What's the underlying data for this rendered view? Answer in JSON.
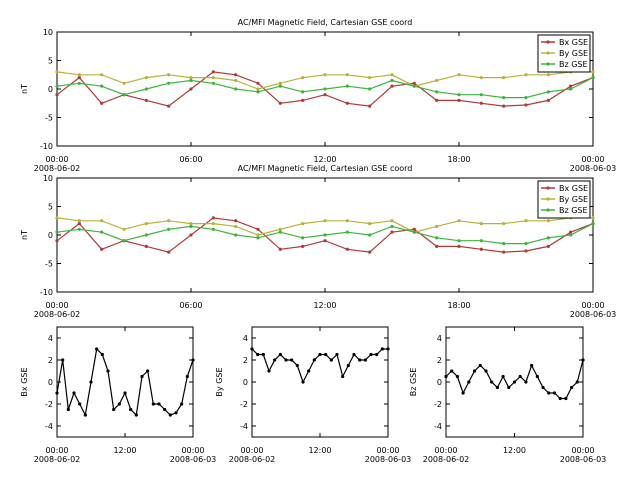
{
  "chart_data": [
    {
      "type": "line",
      "title": "AC/MFI  Magnetic Field, Cartesian GSE coord",
      "ylabel": "nT",
      "legend": "upper right",
      "x": [
        "2008-06-02T00:00",
        "2008-06-02T01:00",
        "2008-06-02T02:00",
        "2008-06-02T03:00",
        "2008-06-02T04:00",
        "2008-06-02T05:00",
        "2008-06-02T06:00",
        "2008-06-02T07:00",
        "2008-06-02T08:00",
        "2008-06-02T09:00",
        "2008-06-02T10:00",
        "2008-06-02T11:00",
        "2008-06-02T12:00",
        "2008-06-02T13:00",
        "2008-06-02T14:00",
        "2008-06-02T15:00",
        "2008-06-02T16:00",
        "2008-06-02T17:00",
        "2008-06-02T18:00",
        "2008-06-02T19:00",
        "2008-06-02T20:00",
        "2008-06-02T21:00",
        "2008-06-02T22:00",
        "2008-06-02T23:00",
        "2008-06-03T00:00"
      ],
      "series": [
        {
          "name": "Bx GSE",
          "color": "#b03a3a",
          "values": [
            -1,
            2,
            -2.5,
            -1,
            -2,
            -3,
            0,
            3,
            2.5,
            1,
            -2.5,
            -2,
            -1,
            -2.5,
            -3,
            0.5,
            1,
            -2,
            -2,
            -2.5,
            -3,
            -2.8,
            -2,
            0.5,
            2
          ]
        },
        {
          "name": "By GSE",
          "color": "#b8b23a",
          "values": [
            3,
            2.5,
            2.5,
            1,
            2,
            2.5,
            2,
            2,
            1.5,
            0,
            1,
            2,
            2.5,
            2.5,
            2,
            2.5,
            0.5,
            1.5,
            2.5,
            2,
            2,
            2.5,
            2.5,
            3,
            3
          ]
        },
        {
          "name": "Bz GSE",
          "color": "#3cb43c",
          "values": [
            0.5,
            1,
            0.5,
            -1,
            0,
            1,
            1.5,
            1,
            0,
            -0.5,
            0.5,
            -0.5,
            0,
            0.5,
            0,
            1.5,
            0.5,
            -0.5,
            -1,
            -1,
            -1.5,
            -1.5,
            -0.5,
            0,
            2
          ]
        }
      ],
      "xlim": [
        "2008-06-02T00:00",
        "2008-06-03T00:00"
      ],
      "xticks": [
        {
          "value": "2008-06-02T00:00",
          "label": "00:00\n2008-06-02"
        },
        {
          "value": "2008-06-02T06:00",
          "label": "06:00"
        },
        {
          "value": "2008-06-02T12:00",
          "label": "12:00"
        },
        {
          "value": "2008-06-02T18:00",
          "label": "18:00"
        },
        {
          "value": "2008-06-03T00:00",
          "label": "00:00\n2008-06-03"
        }
      ],
      "ylim": [
        -10,
        10
      ],
      "yticks": [
        -10,
        -5,
        0,
        5,
        10
      ]
    },
    {
      "type": "line",
      "title": "AC/MFI  Magnetic Field, Cartesian GSE coord",
      "ylabel": "nT",
      "legend": "upper right",
      "x": [
        "2008-06-02T00:00",
        "2008-06-02T01:00",
        "2008-06-02T02:00",
        "2008-06-02T03:00",
        "2008-06-02T04:00",
        "2008-06-02T05:00",
        "2008-06-02T06:00",
        "2008-06-02T07:00",
        "2008-06-02T08:00",
        "2008-06-02T09:00",
        "2008-06-02T10:00",
        "2008-06-02T11:00",
        "2008-06-02T12:00",
        "2008-06-02T13:00",
        "2008-06-02T14:00",
        "2008-06-02T15:00",
        "2008-06-02T16:00",
        "2008-06-02T17:00",
        "2008-06-02T18:00",
        "2008-06-02T19:00",
        "2008-06-02T20:00",
        "2008-06-02T21:00",
        "2008-06-02T22:00",
        "2008-06-02T23:00",
        "2008-06-03T00:00"
      ],
      "series": [
        {
          "name": "Bx GSE",
          "color": "#b03a3a",
          "values": [
            -1,
            2,
            -2.5,
            -1,
            -2,
            -3,
            0,
            3,
            2.5,
            1,
            -2.5,
            -2,
            -1,
            -2.5,
            -3,
            0.5,
            1,
            -2,
            -2,
            -2.5,
            -3,
            -2.8,
            -2,
            0.5,
            2
          ]
        },
        {
          "name": "By GSE",
          "color": "#b8b23a",
          "values": [
            3,
            2.5,
            2.5,
            1,
            2,
            2.5,
            2,
            2,
            1.5,
            0,
            1,
            2,
            2.5,
            2.5,
            2,
            2.5,
            0.5,
            1.5,
            2.5,
            2,
            2,
            2.5,
            2.5,
            3,
            3
          ]
        },
        {
          "name": "Bz GSE",
          "color": "#3cb43c",
          "values": [
            0.5,
            1,
            0.5,
            -1,
            0,
            1,
            1.5,
            1,
            0,
            -0.5,
            0.5,
            -0.5,
            0,
            0.5,
            0,
            1.5,
            0.5,
            -0.5,
            -1,
            -1,
            -1.5,
            -1.5,
            -0.5,
            0,
            2
          ]
        }
      ],
      "xlim": [
        "2008-06-02T00:00",
        "2008-06-03T00:00"
      ],
      "xticks": [
        {
          "value": "2008-06-02T00:00",
          "label": "00:00\n2008-06-02"
        },
        {
          "value": "2008-06-02T06:00",
          "label": "06:00"
        },
        {
          "value": "2008-06-02T12:00",
          "label": "12:00"
        },
        {
          "value": "2008-06-02T18:00",
          "label": "18:00"
        },
        {
          "value": "2008-06-03T00:00",
          "label": "00:00\n2008-06-03"
        }
      ],
      "ylim": [
        -10,
        10
      ],
      "yticks": [
        -10,
        -5,
        0,
        5,
        10
      ]
    },
    {
      "type": "line",
      "ylabel": "Bx GSE",
      "color": "#000000",
      "x": [
        "2008-06-02T00:00",
        "2008-06-02T01:00",
        "2008-06-02T02:00",
        "2008-06-02T03:00",
        "2008-06-02T04:00",
        "2008-06-02T05:00",
        "2008-06-02T06:00",
        "2008-06-02T07:00",
        "2008-06-02T08:00",
        "2008-06-02T09:00",
        "2008-06-02T10:00",
        "2008-06-02T11:00",
        "2008-06-02T12:00",
        "2008-06-02T13:00",
        "2008-06-02T14:00",
        "2008-06-02T15:00",
        "2008-06-02T16:00",
        "2008-06-02T17:00",
        "2008-06-02T18:00",
        "2008-06-02T19:00",
        "2008-06-02T20:00",
        "2008-06-02T21:00",
        "2008-06-02T22:00",
        "2008-06-02T23:00",
        "2008-06-03T00:00"
      ],
      "values": [
        -1,
        2,
        -2.5,
        -1,
        -2,
        -3,
        0,
        3,
        2.5,
        1,
        -2.5,
        -2,
        -1,
        -2.5,
        -3,
        0.5,
        1,
        -2,
        -2,
        -2.5,
        -3,
        -2.8,
        -2,
        0.5,
        2
      ],
      "xlim": [
        "2008-06-02T00:00",
        "2008-06-03T00:00"
      ],
      "xticks": [
        {
          "value": "2008-06-02T00:00",
          "label": "00:00\n2008-06-02"
        },
        {
          "value": "2008-06-02T12:00",
          "label": "12:00"
        },
        {
          "value": "2008-06-03T00:00",
          "label": "00:00\n2008-06-03"
        }
      ],
      "ylim": [
        -5,
        5
      ],
      "yticks": [
        -4,
        -2,
        0,
        2,
        4
      ]
    },
    {
      "type": "line",
      "ylabel": "By GSE",
      "color": "#000000",
      "x": [
        "2008-06-02T00:00",
        "2008-06-02T01:00",
        "2008-06-02T02:00",
        "2008-06-02T03:00",
        "2008-06-02T04:00",
        "2008-06-02T05:00",
        "2008-06-02T06:00",
        "2008-06-02T07:00",
        "2008-06-02T08:00",
        "2008-06-02T09:00",
        "2008-06-02T10:00",
        "2008-06-02T11:00",
        "2008-06-02T12:00",
        "2008-06-02T13:00",
        "2008-06-02T14:00",
        "2008-06-02T15:00",
        "2008-06-02T16:00",
        "2008-06-02T17:00",
        "2008-06-02T18:00",
        "2008-06-02T19:00",
        "2008-06-02T20:00",
        "2008-06-02T21:00",
        "2008-06-02T22:00",
        "2008-06-02T23:00",
        "2008-06-03T00:00"
      ],
      "values": [
        3,
        2.5,
        2.5,
        1,
        2,
        2.5,
        2,
        2,
        1.5,
        0,
        1,
        2,
        2.5,
        2.5,
        2,
        2.5,
        0.5,
        1.5,
        2.5,
        2,
        2,
        2.5,
        2.5,
        3,
        3
      ],
      "xlim": [
        "2008-06-02T00:00",
        "2008-06-03T00:00"
      ],
      "xticks": [
        {
          "value": "2008-06-02T00:00",
          "label": "00:00\n2008-06-02"
        },
        {
          "value": "2008-06-02T12:00",
          "label": "12:00"
        },
        {
          "value": "2008-06-03T00:00",
          "label": "00:00\n2008-06-03"
        }
      ],
      "ylim": [
        -5,
        5
      ],
      "yticks": [
        -4,
        -2,
        0,
        2,
        4
      ]
    },
    {
      "type": "line",
      "ylabel": "Bz GSE",
      "color": "#000000",
      "x": [
        "2008-06-02T00:00",
        "2008-06-02T01:00",
        "2008-06-02T02:00",
        "2008-06-02T03:00",
        "2008-06-02T04:00",
        "2008-06-02T05:00",
        "2008-06-02T06:00",
        "2008-06-02T07:00",
        "2008-06-02T08:00",
        "2008-06-02T09:00",
        "2008-06-02T10:00",
        "2008-06-02T11:00",
        "2008-06-02T12:00",
        "2008-06-02T13:00",
        "2008-06-02T14:00",
        "2008-06-02T15:00",
        "2008-06-02T16:00",
        "2008-06-02T17:00",
        "2008-06-02T18:00",
        "2008-06-02T19:00",
        "2008-06-02T20:00",
        "2008-06-02T21:00",
        "2008-06-02T22:00",
        "2008-06-02T23:00",
        "2008-06-03T00:00"
      ],
      "values": [
        0.5,
        1,
        0.5,
        -1,
        0,
        1,
        1.5,
        1,
        0,
        -0.5,
        0.5,
        -0.5,
        0,
        0.5,
        0,
        1.5,
        0.5,
        -0.5,
        -1,
        -1,
        -1.5,
        -1.5,
        -0.5,
        0,
        2
      ],
      "xlim": [
        "2008-06-02T00:00",
        "2008-06-03T00:00"
      ],
      "xticks": [
        {
          "value": "2008-06-02T00:00",
          "label": "00:00\n2008-06-02"
        },
        {
          "value": "2008-06-02T12:00",
          "label": "12:00"
        },
        {
          "value": "2008-06-03T00:00",
          "label": "00:00\n2008-06-03"
        }
      ],
      "ylim": [
        -5,
        5
      ],
      "yticks": [
        -4,
        -2,
        0,
        2,
        4
      ]
    }
  ]
}
